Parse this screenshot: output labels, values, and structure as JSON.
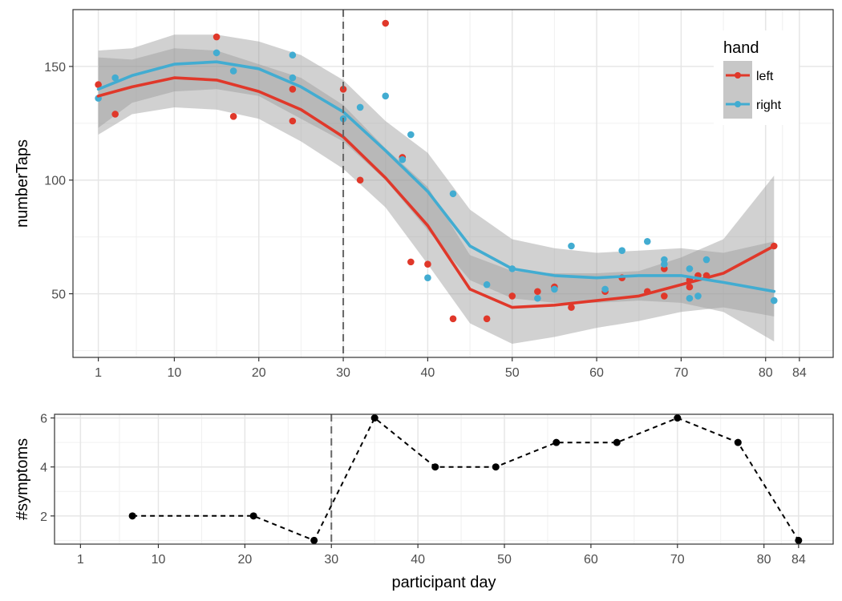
{
  "chart_data": [
    {
      "type": "scatter",
      "title": "",
      "xlabel": "",
      "ylabel": "numberTaps",
      "xlim": [
        -2,
        88
      ],
      "ylim": [
        22,
        175
      ],
      "x_ticks": [
        1,
        10,
        20,
        30,
        40,
        50,
        60,
        70,
        80,
        84
      ],
      "y_ticks": [
        50,
        100,
        150
      ],
      "grid": true,
      "vline": 30,
      "legend": {
        "title": "hand",
        "position": "top-right"
      },
      "series": [
        {
          "name": "left",
          "color": "#e0382a",
          "points": [
            [
              1,
              142
            ],
            [
              3,
              129
            ],
            [
              15,
              163
            ],
            [
              17,
              128
            ],
            [
              24,
              140
            ],
            [
              24,
              126
            ],
            [
              30,
              140
            ],
            [
              32,
              100
            ],
            [
              35,
              169
            ],
            [
              37,
              110
            ],
            [
              38,
              64
            ],
            [
              40,
              63
            ],
            [
              43,
              39
            ],
            [
              47,
              39
            ],
            [
              50,
              49
            ],
            [
              53,
              51
            ],
            [
              55,
              53
            ],
            [
              57,
              44
            ],
            [
              61,
              51
            ],
            [
              63,
              57
            ],
            [
              66,
              51
            ],
            [
              68,
              49
            ],
            [
              68,
              61
            ],
            [
              71,
              53
            ],
            [
              71,
              56
            ],
            [
              72,
              58
            ],
            [
              73,
              58
            ],
            [
              81,
              71
            ]
          ],
          "smooth": [
            [
              1,
              137
            ],
            [
              5,
              141
            ],
            [
              10,
              145
            ],
            [
              15,
              144
            ],
            [
              20,
              139
            ],
            [
              25,
              131
            ],
            [
              30,
              119
            ],
            [
              35,
              101
            ],
            [
              40,
              80
            ],
            [
              45,
              52
            ],
            [
              50,
              44
            ],
            [
              55,
              45
            ],
            [
              60,
              47
            ],
            [
              65,
              49
            ],
            [
              70,
              54
            ],
            [
              75,
              59
            ],
            [
              81,
              71
            ]
          ],
          "band_lower": [
            [
              1,
              120
            ],
            [
              5,
              129
            ],
            [
              10,
              132
            ],
            [
              15,
              131
            ],
            [
              20,
              127
            ],
            [
              25,
              117
            ],
            [
              30,
              105
            ],
            [
              35,
              88
            ],
            [
              40,
              63
            ],
            [
              45,
              37
            ],
            [
              50,
              28
            ],
            [
              55,
              31
            ],
            [
              60,
              35
            ],
            [
              65,
              38
            ],
            [
              70,
              42
            ],
            [
              75,
              44
            ],
            [
              81,
              40
            ]
          ],
          "band_upper": [
            [
              1,
              154
            ],
            [
              5,
              153
            ],
            [
              10,
              158
            ],
            [
              15,
              157
            ],
            [
              20,
              151
            ],
            [
              25,
              145
            ],
            [
              30,
              133
            ],
            [
              35,
              114
            ],
            [
              40,
              97
            ],
            [
              45,
              67
            ],
            [
              50,
              60
            ],
            [
              55,
              59
            ],
            [
              60,
              59
            ],
            [
              65,
              60
            ],
            [
              70,
              66
            ],
            [
              75,
              74
            ],
            [
              81,
              102
            ]
          ]
        },
        {
          "name": "right",
          "color": "#42acd1",
          "points": [
            [
              1,
              136
            ],
            [
              3,
              145
            ],
            [
              15,
              156
            ],
            [
              17,
              148
            ],
            [
              24,
              145
            ],
            [
              24,
              155
            ],
            [
              30,
              127
            ],
            [
              32,
              132
            ],
            [
              35,
              137
            ],
            [
              37,
              109
            ],
            [
              38,
              120
            ],
            [
              40,
              57
            ],
            [
              43,
              94
            ],
            [
              47,
              54
            ],
            [
              50,
              61
            ],
            [
              53,
              48
            ],
            [
              55,
              52
            ],
            [
              57,
              71
            ],
            [
              61,
              52
            ],
            [
              63,
              69
            ],
            [
              66,
              73
            ],
            [
              68,
              65
            ],
            [
              68,
              63
            ],
            [
              71,
              61
            ],
            [
              71,
              48
            ],
            [
              72,
              49
            ],
            [
              73,
              65
            ],
            [
              81,
              47
            ]
          ],
          "smooth": [
            [
              1,
              140
            ],
            [
              5,
              146
            ],
            [
              10,
              151
            ],
            [
              15,
              152
            ],
            [
              20,
              149
            ],
            [
              25,
              141
            ],
            [
              30,
              130
            ],
            [
              35,
              113
            ],
            [
              40,
              95
            ],
            [
              45,
              71
            ],
            [
              50,
              61
            ],
            [
              55,
              58
            ],
            [
              60,
              57
            ],
            [
              65,
              58
            ],
            [
              70,
              58
            ],
            [
              75,
              55
            ],
            [
              81,
              51
            ]
          ],
          "band_lower": [
            [
              1,
              123
            ],
            [
              5,
              134
            ],
            [
              10,
              139
            ],
            [
              15,
              140
            ],
            [
              20,
              137
            ],
            [
              25,
              127
            ],
            [
              30,
              117
            ],
            [
              35,
              100
            ],
            [
              40,
              78
            ],
            [
              45,
              56
            ],
            [
              50,
              48
            ],
            [
              55,
              46
            ],
            [
              60,
              46
            ],
            [
              65,
              47
            ],
            [
              70,
              46
            ],
            [
              75,
              42
            ],
            [
              81,
              29
            ]
          ],
          "band_upper": [
            [
              1,
              157
            ],
            [
              5,
              158
            ],
            [
              10,
              164
            ],
            [
              15,
              164
            ],
            [
              20,
              161
            ],
            [
              25,
              155
            ],
            [
              30,
              144
            ],
            [
              35,
              126
            ],
            [
              40,
              112
            ],
            [
              45,
              87
            ],
            [
              50,
              74
            ],
            [
              55,
              70
            ],
            [
              60,
              68
            ],
            [
              65,
              69
            ],
            [
              70,
              70
            ],
            [
              75,
              68
            ],
            [
              81,
              73
            ]
          ]
        }
      ]
    },
    {
      "type": "line",
      "title": "",
      "xlabel": "participant day",
      "ylabel": "#symptoms",
      "xlim": [
        -2,
        88
      ],
      "ylim": [
        0.85,
        6.15
      ],
      "x_ticks": [
        1,
        10,
        20,
        30,
        40,
        50,
        60,
        70,
        80,
        84
      ],
      "y_ticks": [
        2,
        4,
        6
      ],
      "grid": true,
      "vline": 30,
      "series": [
        {
          "color": "#000000",
          "x": [
            7,
            21,
            28,
            35,
            42,
            49,
            56,
            63,
            70,
            77,
            84
          ],
          "y": [
            2,
            2,
            1,
            6,
            4,
            4,
            5,
            5,
            6,
            5,
            1
          ]
        }
      ]
    }
  ]
}
